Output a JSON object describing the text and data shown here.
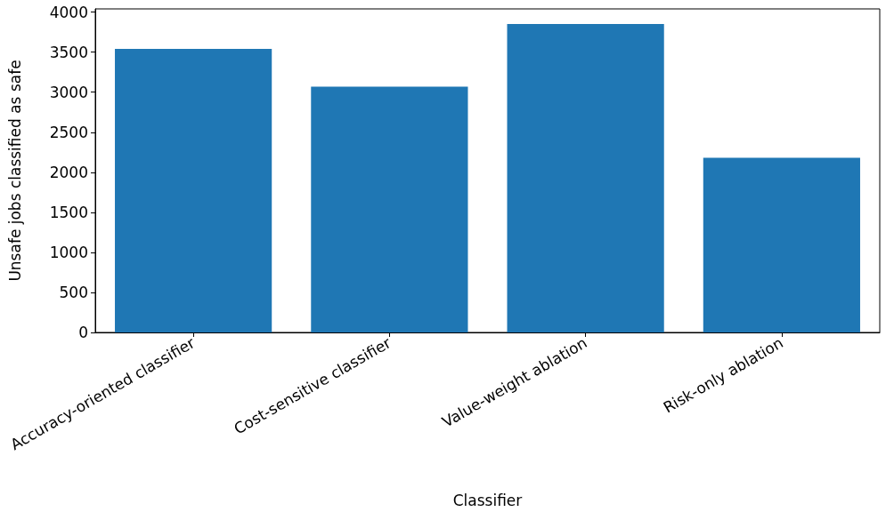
{
  "chart_data": {
    "type": "bar",
    "xlabel": "Classifier",
    "ylabel": "Unsafe jobs classified as safe",
    "categories": [
      "Accuracy-oriented classifier",
      "Cost-sensitive classifier",
      "Value-weight ablation",
      "Risk-only ablation"
    ],
    "values": [
      3540,
      3070,
      3850,
      2180
    ],
    "color": "#1f77b4",
    "ylim": [
      0,
      4040
    ],
    "yticks": [
      0,
      500,
      1000,
      1500,
      2000,
      2500,
      3000,
      3500,
      4000
    ],
    "grid": false
  }
}
